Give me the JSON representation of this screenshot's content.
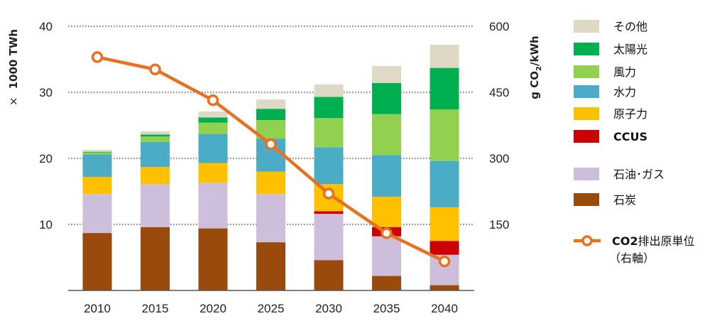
{
  "chart_data": {
    "type": "bar",
    "stacked": true,
    "categories": [
      "2010",
      "2015",
      "2020",
      "2025",
      "2030",
      "2035",
      "2040"
    ],
    "series": [
      {
        "name": "石炭",
        "color": "#9b4a0d",
        "values": [
          8.7,
          9.6,
          9.4,
          7.3,
          4.6,
          2.2,
          0.8
        ]
      },
      {
        "name": "石油･ガス",
        "color": "#cdbfdc",
        "values": [
          5.9,
          6.5,
          6.9,
          7.3,
          7.0,
          6.0,
          4.6
        ]
      },
      {
        "name": "CCUS",
        "color": "#cc0000",
        "values": [
          0,
          0,
          0,
          0,
          0.4,
          1.4,
          2.1
        ]
      },
      {
        "name": "原子力",
        "color": "#ffc000",
        "values": [
          2.6,
          2.6,
          3.0,
          3.4,
          4.1,
          4.6,
          5.1
        ]
      },
      {
        "name": "水力",
        "color": "#4bacc6",
        "values": [
          3.4,
          3.8,
          4.4,
          5.0,
          5.6,
          6.3,
          7.0
        ]
      },
      {
        "name": "風力",
        "color": "#92d050",
        "values": [
          0.3,
          0.8,
          1.7,
          2.8,
          4.4,
          6.2,
          7.8
        ]
      },
      {
        "name": "太陽光",
        "color": "#00b050",
        "values": [
          0.1,
          0.3,
          0.8,
          1.7,
          3.2,
          4.7,
          6.3
        ]
      },
      {
        "name": "その他",
        "color": "#ddd9c4",
        "values": [
          0.3,
          0.5,
          0.9,
          1.4,
          1.9,
          2.6,
          3.5
        ]
      }
    ],
    "line_series": {
      "name": "CO2排出原単位",
      "name_sub": "（右軸）",
      "color": "#e8701e",
      "axis": "right",
      "values": [
        530,
        502,
        432,
        332,
        220,
        130,
        66
      ]
    },
    "ylabel": "× 1000 TWh",
    "ylabel_prefix": "×",
    "ylabel_main": "1000 TWh",
    "y2label_parts": [
      "g CO",
      "2",
      "/kWh"
    ],
    "ylim": [
      0,
      40
    ],
    "y2lim": [
      0,
      600
    ],
    "yticks": [
      "10",
      "20",
      "30",
      "40"
    ],
    "y2ticks": [
      "150",
      "300",
      "450",
      "600"
    ],
    "grid": true,
    "legend_position": "right"
  }
}
